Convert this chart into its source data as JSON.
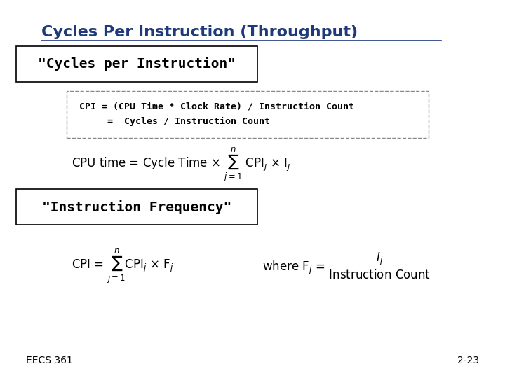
{
  "title": "Cycles Per Instruction (Throughput)",
  "title_color": "#1F3A7A",
  "title_fontsize": 16,
  "bg_color": "#FFFFFF",
  "box1_label": "\"Cycles per Instruction\"",
  "cpi_line1": "CPI = (CPU Time * Clock Rate) / Instruction Count",
  "cpi_line2": "     =  Cycles / Instruction Count",
  "box2_label": "\"Instruction Frequency\"",
  "footer_left": "EECS 361",
  "footer_right": "2-23",
  "footer_color": "#000000"
}
